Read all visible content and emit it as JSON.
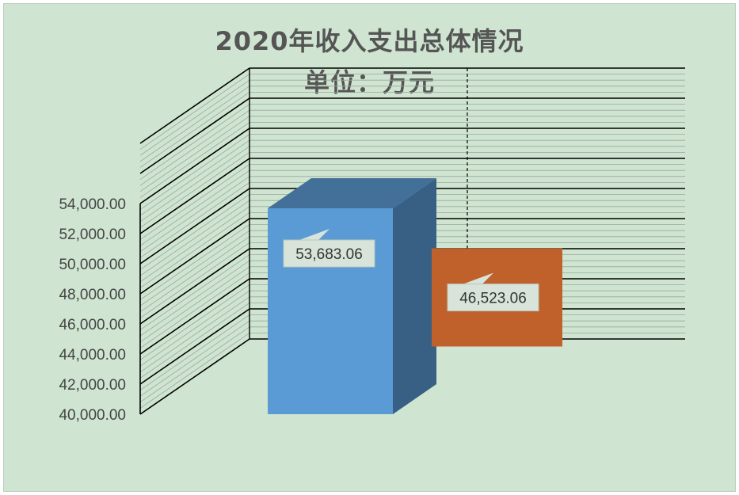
{
  "chart_data": {
    "type": "bar",
    "title": "2020年收入支出总体情况",
    "subtitle": "单位：万元",
    "categories": [
      "",
      ""
    ],
    "series": [
      {
        "values": [
          53683.06,
          46523.06
        ],
        "colors": [
          "#5b9bd5",
          "#c0612b"
        ]
      }
    ],
    "data_labels": [
      "53,683.06",
      "46,523.06"
    ],
    "y_ticks": [
      "40,000.00",
      "42,000.00",
      "44,000.00",
      "46,000.00",
      "48,000.00",
      "50,000.00",
      "52,000.00",
      "54,000.00"
    ],
    "ylim": [
      40000,
      54000
    ],
    "grid": true,
    "style": "3d-column",
    "xlabel": "",
    "ylabel": ""
  }
}
